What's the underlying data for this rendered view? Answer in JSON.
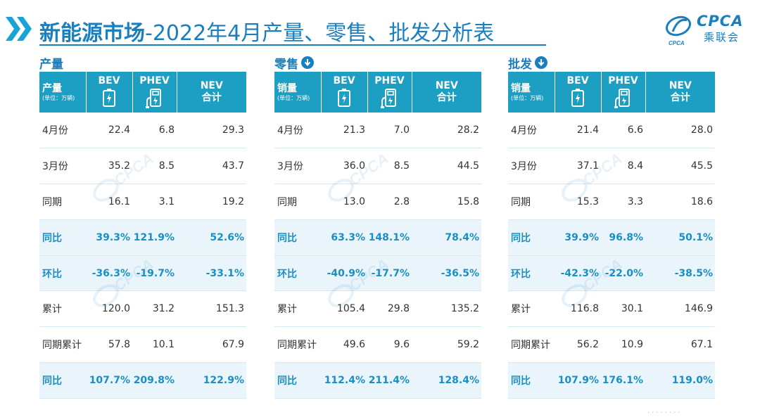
{
  "header": {
    "title_bold": "新能源市场",
    "title_rest": "-2022年4月产量、零售、批发分析表",
    "logo_text": "CPCA",
    "logo_cn": "乘联会",
    "logo_sub": "CPCA"
  },
  "icons": {
    "chevrons": "double-chevron-right-icon",
    "bev": "battery-icon",
    "phev": "fuel-pump-plug-icon",
    "arrow": "arrow-down-circle-icon",
    "logo": "cpca-logo"
  },
  "colors": {
    "accent": "#1a7fbf",
    "header_bg": "#1d9fc4",
    "highlight_row_bg": "#eaf5fb",
    "highlight_text": "#1a8fc4"
  },
  "columns": {
    "bev": "BEV",
    "phev": "PHEV",
    "nev_line1": "NEV",
    "nev_line2": "合计"
  },
  "chart_data": [
    {
      "type": "table",
      "title": "产量",
      "header_label": "产量",
      "unit": "(单位：万辆)",
      "columns": [
        "BEV",
        "PHEV",
        "NEV合计"
      ],
      "rows": [
        {
          "label": "4月份",
          "values": [
            "22.4",
            "6.8",
            "29.3"
          ],
          "highlight": false
        },
        {
          "label": "3月份",
          "values": [
            "35.2",
            "8.5",
            "43.7"
          ],
          "highlight": false
        },
        {
          "label": "同期",
          "values": [
            "16.1",
            "3.1",
            "19.2"
          ],
          "highlight": false
        },
        {
          "label": "同比",
          "values": [
            "39.3%",
            "121.9%",
            "52.6%"
          ],
          "highlight": true
        },
        {
          "label": "环比",
          "values": [
            "-36.3%",
            "-19.7%",
            "-33.1%"
          ],
          "highlight": true
        },
        {
          "label": "累计",
          "values": [
            "120.0",
            "31.2",
            "151.3"
          ],
          "highlight": false
        },
        {
          "label": "同期累计",
          "values": [
            "57.8",
            "10.1",
            "67.9"
          ],
          "highlight": false
        },
        {
          "label": "同比",
          "values": [
            "107.7%",
            "209.8%",
            "122.9%"
          ],
          "highlight": true
        }
      ]
    },
    {
      "type": "table",
      "title": "零售",
      "header_label": "销量",
      "unit": "(单位：万辆)",
      "columns": [
        "BEV",
        "PHEV",
        "NEV合计"
      ],
      "rows": [
        {
          "label": "4月份",
          "values": [
            "21.3",
            "7.0",
            "28.2"
          ],
          "highlight": false
        },
        {
          "label": "3月份",
          "values": [
            "36.0",
            "8.5",
            "44.5"
          ],
          "highlight": false
        },
        {
          "label": "同期",
          "values": [
            "13.0",
            "2.8",
            "15.8"
          ],
          "highlight": false
        },
        {
          "label": "同比",
          "values": [
            "63.3%",
            "148.1%",
            "78.4%"
          ],
          "highlight": true
        },
        {
          "label": "环比",
          "values": [
            "-40.9%",
            "-17.7%",
            "-36.5%"
          ],
          "highlight": true
        },
        {
          "label": "累计",
          "values": [
            "105.4",
            "29.8",
            "135.2"
          ],
          "highlight": false
        },
        {
          "label": "同期累计",
          "values": [
            "49.6",
            "9.6",
            "59.2"
          ],
          "highlight": false
        },
        {
          "label": "同比",
          "values": [
            "112.4%",
            "211.4%",
            "128.4%"
          ],
          "highlight": true
        }
      ]
    },
    {
      "type": "table",
      "title": "批发",
      "header_label": "销量",
      "unit": "(单位：万辆)",
      "columns": [
        "BEV",
        "PHEV",
        "NEV合计"
      ],
      "rows": [
        {
          "label": "4月份",
          "values": [
            "21.4",
            "6.6",
            "28.0"
          ],
          "highlight": false
        },
        {
          "label": "3月份",
          "values": [
            "37.1",
            "8.4",
            "45.5"
          ],
          "highlight": false
        },
        {
          "label": "同期",
          "values": [
            "15.3",
            "3.3",
            "18.6"
          ],
          "highlight": false
        },
        {
          "label": "同比",
          "values": [
            "39.9%",
            "96.8%",
            "50.1%"
          ],
          "highlight": true
        },
        {
          "label": "环比",
          "values": [
            "-42.3%",
            "-22.0%",
            "-38.5%"
          ],
          "highlight": true
        },
        {
          "label": "累计",
          "values": [
            "116.8",
            "30.1",
            "146.9"
          ],
          "highlight": false
        },
        {
          "label": "同期累计",
          "values": [
            "56.2",
            "10.9",
            "67.1"
          ],
          "highlight": false
        },
        {
          "label": "同比",
          "values": [
            "107.9%",
            "176.1%",
            "119.0%"
          ],
          "highlight": true
        }
      ]
    }
  ]
}
